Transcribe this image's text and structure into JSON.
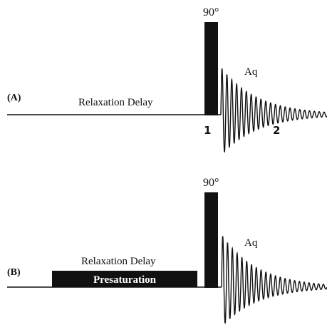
{
  "panels": [
    {
      "label": "(A)",
      "delay_label": "Relaxation Delay",
      "pulse_label": "90°",
      "acq_label": "Aq",
      "marker_start": "1",
      "marker_end": "2"
    },
    {
      "label": "(B)",
      "delay_label": "Relaxation Delay",
      "presat_label": "Presaturation",
      "pulse_label": "90°",
      "acq_label": "Aq"
    }
  ],
  "colors": {
    "ink": "#111111",
    "background": "#ffffff",
    "presat_text": "#ffffff"
  }
}
